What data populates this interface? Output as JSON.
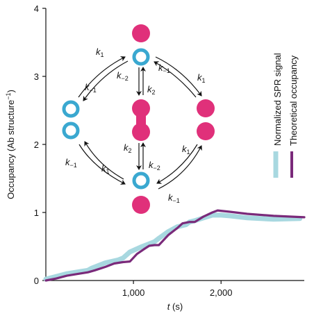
{
  "chart_data": {
    "type": "line",
    "xlabel_var": "t",
    "xlabel_unit": " (s)",
    "ylabel": "Occupancy (Ab structure",
    "ylabel_sup": "−1",
    "ylabel_close": ")",
    "xlim": [
      0,
      2950
    ],
    "ylim": [
      0,
      4
    ],
    "x_ticks": [
      1000,
      2000
    ],
    "x_tick_labels": [
      "1,000",
      "2,000"
    ],
    "y_ticks": [
      0,
      1,
      2,
      3,
      4
    ],
    "y_tick_labels": [
      "0",
      "1",
      "2",
      "3",
      "4"
    ],
    "grid": false,
    "legend_position": "right, vertical",
    "colors": {
      "spr": "#a8d8e0",
      "theory": "#7a2a7a",
      "ring": "#3aa8d0",
      "ball": "#e0307a"
    },
    "series": [
      {
        "name": "Normalized SPR signal",
        "x": [
          0,
          120,
          240,
          380,
          480,
          520,
          680,
          820,
          880,
          960,
          1100,
          1180,
          1240,
          1290,
          1400,
          1500,
          1600,
          1640,
          1700,
          1800,
          1900,
          2000,
          2100,
          2300,
          2600,
          2900
        ],
        "y": [
          0.02,
          0.06,
          0.1,
          0.13,
          0.15,
          0.18,
          0.26,
          0.3,
          0.33,
          0.42,
          0.5,
          0.54,
          0.57,
          0.62,
          0.72,
          0.79,
          0.82,
          0.86,
          0.88,
          0.92,
          0.96,
          0.96,
          0.95,
          0.92,
          0.9,
          0.91
        ]
      },
      {
        "name": "Theoretical occupancy",
        "x": [
          0,
          120,
          240,
          380,
          480,
          560,
          680,
          780,
          880,
          960,
          1040,
          1120,
          1180,
          1240,
          1290,
          1400,
          1500,
          1560,
          1640,
          1700,
          1800,
          1900,
          1960,
          2100,
          2300,
          2600,
          2950
        ],
        "y": [
          0.0,
          0.03,
          0.07,
          0.1,
          0.12,
          0.15,
          0.2,
          0.25,
          0.27,
          0.28,
          0.39,
          0.46,
          0.51,
          0.52,
          0.52,
          0.67,
          0.77,
          0.84,
          0.86,
          0.86,
          0.94,
          1.0,
          1.03,
          1.01,
          0.98,
          0.95,
          0.93
        ]
      }
    ],
    "diagram": {
      "labels": [
        {
          "base": "k",
          "sub": "1"
        },
        {
          "base": "k",
          "sub": "−2"
        },
        {
          "base": "k",
          "sub": "−1"
        },
        {
          "base": "k",
          "sub": "1"
        },
        {
          "base": "k",
          "sub": "−1"
        },
        {
          "base": "k",
          "sub": "2"
        },
        {
          "base": "k",
          "sub": "2"
        },
        {
          "base": "k",
          "sub": "−2"
        },
        {
          "base": "k",
          "sub": "−1"
        },
        {
          "base": "k",
          "sub": "1"
        },
        {
          "base": "k",
          "sub": "1"
        },
        {
          "base": "k",
          "sub": "−1"
        }
      ]
    }
  }
}
